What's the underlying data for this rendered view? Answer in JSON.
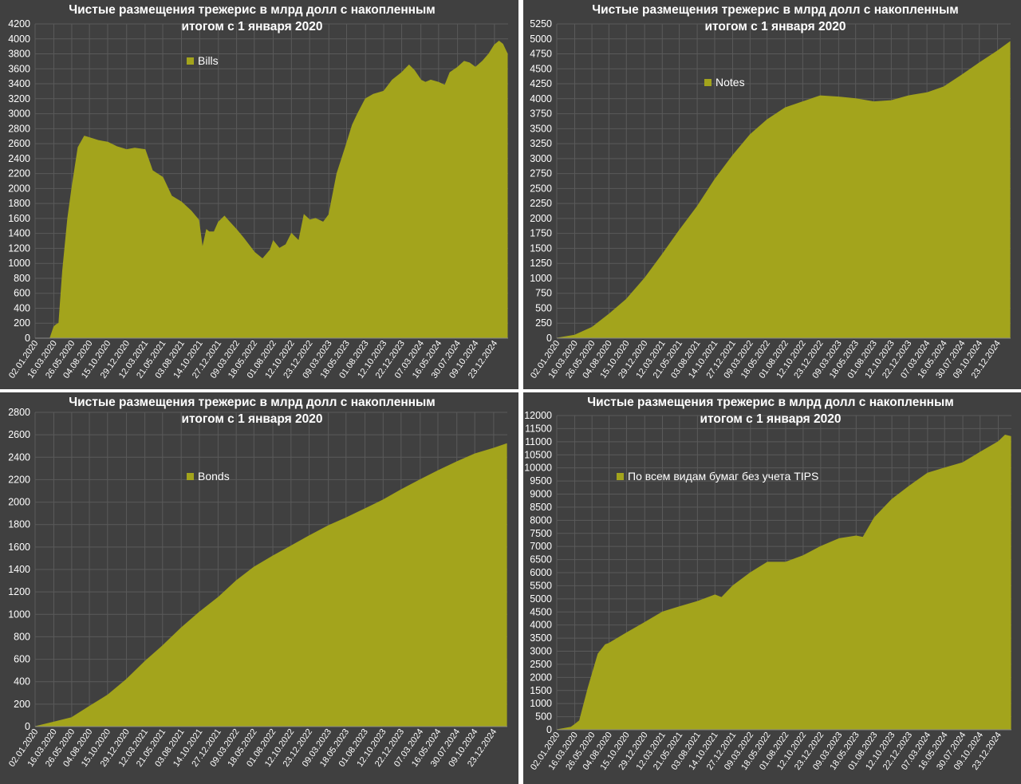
{
  "colors": {
    "background": "#404040",
    "series": "#a3a41c",
    "grid": "#5a5a5a",
    "text": "#ffffff"
  },
  "chart_data": [
    {
      "type": "area",
      "title": "Чистые размещения трежерис в млрд долл с накопленным итогом с 1 января 2020",
      "legend": "top-left",
      "grid": true,
      "ylim": [
        0,
        4200
      ],
      "yticks": [
        0,
        200,
        400,
        600,
        800,
        1000,
        1200,
        1400,
        1600,
        1800,
        2000,
        2200,
        2400,
        2600,
        2800,
        3000,
        3200,
        3400,
        3600,
        3800,
        4000,
        4200
      ],
      "xlim": [
        "2020-01-02",
        "2025-02-15"
      ],
      "xticks": [
        "02.01.2020",
        "16.03.2020",
        "26.05.2020",
        "04.08.2020",
        "15.10.2020",
        "29.12.2020",
        "12.03.2021",
        "21.05.2021",
        "03.08.2021",
        "14.10.2021",
        "27.12.2021",
        "09.03.2022",
        "18.05.2022",
        "01.08.2022",
        "12.10.2022",
        "23.12.2022",
        "09.03.2023",
        "18.05.2023",
        "01.08.2023",
        "12.10.2023",
        "22.12.2023",
        "07.03.2024",
        "16.05.2024",
        "30.07.2024",
        "09.10.2024",
        "23.12.2024"
      ],
      "series": [
        {
          "name": "Bills",
          "x": [
            "2020-01-02",
            "2020-02-15",
            "2020-03-01",
            "2020-03-16",
            "2020-03-25",
            "2020-04-05",
            "2020-04-20",
            "2020-05-10",
            "2020-05-26",
            "2020-06-20",
            "2020-07-15",
            "2020-08-04",
            "2020-09-10",
            "2020-10-15",
            "2020-11-20",
            "2020-12-29",
            "2021-01-30",
            "2021-03-12",
            "2021-04-10",
            "2021-05-21",
            "2021-06-25",
            "2021-08-03",
            "2021-09-10",
            "2021-10-10",
            "2021-10-25",
            "2021-11-10",
            "2021-11-20",
            "2021-12-10",
            "2021-12-27",
            "2022-01-20",
            "2022-02-10",
            "2022-03-09",
            "2022-04-05",
            "2022-05-18",
            "2022-06-20",
            "2022-07-20",
            "2022-08-01",
            "2022-08-25",
            "2022-09-20",
            "2022-10-12",
            "2022-11-10",
            "2022-12-01",
            "2022-12-23",
            "2023-01-15",
            "2023-02-15",
            "2023-03-09",
            "2023-04-10",
            "2023-05-18",
            "2023-06-10",
            "2023-07-01",
            "2023-08-01",
            "2023-09-01",
            "2023-10-12",
            "2023-11-15",
            "2023-12-22",
            "2024-01-20",
            "2024-02-10",
            "2024-03-07",
            "2024-03-25",
            "2024-04-15",
            "2024-05-16",
            "2024-06-10",
            "2024-06-30",
            "2024-07-30",
            "2024-08-25",
            "2024-09-15",
            "2024-10-09",
            "2024-11-05",
            "2024-12-01",
            "2024-12-23",
            "2025-01-10",
            "2025-01-25",
            "2025-02-05",
            "2025-02-12"
          ],
          "values": [
            0,
            0,
            0,
            150,
            180,
            200,
            900,
            1600,
            2000,
            2550,
            2700,
            2680,
            2640,
            2620,
            2560,
            2520,
            2540,
            2520,
            2240,
            2150,
            1900,
            1820,
            1700,
            1580,
            1200,
            1450,
            1420,
            1420,
            1550,
            1630,
            1550,
            1450,
            1340,
            1150,
            1060,
            1180,
            1300,
            1200,
            1250,
            1400,
            1300,
            1650,
            1580,
            1600,
            1550,
            1650,
            2200,
            2600,
            2850,
            3000,
            3200,
            3260,
            3300,
            3450,
            3550,
            3650,
            3580,
            3450,
            3420,
            3450,
            3420,
            3380,
            3550,
            3620,
            3700,
            3680,
            3620,
            3700,
            3800,
            3920,
            3970,
            3930,
            3850,
            3800
          ]
        }
      ]
    },
    {
      "type": "area",
      "title": "Чистые размещения трежерис в млрд долл с накопленным итогом с 1 января 2020",
      "legend": "top-left",
      "grid": true,
      "ylim": [
        0,
        5250
      ],
      "yticks": [
        0,
        250,
        500,
        750,
        1000,
        1250,
        1500,
        1750,
        2000,
        2250,
        2500,
        2750,
        3000,
        3250,
        3500,
        3750,
        4000,
        4250,
        4500,
        4750,
        5000,
        5250
      ],
      "xlim": [
        "2020-01-02",
        "2025-02-15"
      ],
      "xticks": [
        "02.01.2020",
        "16.03.2020",
        "26.05.2020",
        "04.08.2020",
        "15.10.2020",
        "29.12.2020",
        "12.03.2021",
        "21.05.2021",
        "03.08.2021",
        "14.10.2021",
        "27.12.2021",
        "09.03.2022",
        "18.05.2022",
        "01.08.2022",
        "12.10.2022",
        "23.12.2022",
        "09.03.2023",
        "18.05.2023",
        "01.08.2023",
        "12.10.2023",
        "22.12.2023",
        "07.03.2024",
        "16.05.2024",
        "30.07.2024",
        "09.10.2024",
        "23.12.2024"
      ],
      "series": [
        {
          "name": "Notes",
          "x": [
            "2020-01-02",
            "2020-03-16",
            "2020-05-26",
            "2020-08-04",
            "2020-10-15",
            "2020-12-29",
            "2021-03-12",
            "2021-05-21",
            "2021-08-03",
            "2021-10-14",
            "2021-12-27",
            "2022-03-09",
            "2022-05-18",
            "2022-08-01",
            "2022-10-12",
            "2022-12-23",
            "2023-03-09",
            "2023-05-18",
            "2023-08-01",
            "2023-10-12",
            "2023-12-22",
            "2024-03-07",
            "2024-05-16",
            "2024-07-30",
            "2024-10-09",
            "2024-12-23",
            "2025-02-12"
          ],
          "values": [
            0,
            50,
            180,
            400,
            650,
            1000,
            1400,
            1800,
            2200,
            2650,
            3050,
            3400,
            3650,
            3850,
            3950,
            4050,
            4030,
            4000,
            3950,
            3970,
            4050,
            4100,
            4200,
            4400,
            4600,
            4800,
            4950
          ]
        }
      ]
    },
    {
      "type": "area",
      "title": "Чистые размещения трежерис в млрд долл с накопленным итогом с 1 января 2020",
      "legend": "top-left",
      "grid": true,
      "ylim": [
        0,
        2800
      ],
      "yticks": [
        0,
        200,
        400,
        600,
        800,
        1000,
        1200,
        1400,
        1600,
        1800,
        2000,
        2200,
        2400,
        2600,
        2800
      ],
      "xlim": [
        "2020-01-02",
        "2025-02-15"
      ],
      "xticks": [
        "02.01.2020",
        "16.03.2020",
        "26.05.2020",
        "04.08.2020",
        "15.10.2020",
        "29.12.2020",
        "12.03.2021",
        "21.05.2021",
        "03.08.2021",
        "14.10.2021",
        "27.12.2021",
        "09.03.2022",
        "18.05.2022",
        "01.08.2022",
        "12.10.2022",
        "23.12.2022",
        "09.03.2023",
        "18.05.2023",
        "01.08.2023",
        "12.10.2023",
        "22.12.2023",
        "07.03.2024",
        "16.05.2024",
        "30.07.2024",
        "09.10.2024",
        "23.12.2024"
      ],
      "series": [
        {
          "name": "Bonds",
          "x": [
            "2020-01-02",
            "2020-03-16",
            "2020-05-26",
            "2020-08-04",
            "2020-10-15",
            "2020-12-29",
            "2021-03-12",
            "2021-05-21",
            "2021-08-03",
            "2021-10-14",
            "2021-12-27",
            "2022-03-09",
            "2022-05-18",
            "2022-08-01",
            "2022-10-12",
            "2022-12-23",
            "2023-03-09",
            "2023-05-18",
            "2023-08-01",
            "2023-10-12",
            "2023-12-22",
            "2024-03-07",
            "2024-05-16",
            "2024-07-30",
            "2024-10-09",
            "2024-12-23",
            "2025-02-12"
          ],
          "values": [
            0,
            40,
            80,
            180,
            280,
            420,
            580,
            720,
            880,
            1020,
            1150,
            1300,
            1420,
            1520,
            1610,
            1700,
            1790,
            1860,
            1940,
            2020,
            2110,
            2200,
            2280,
            2360,
            2430,
            2480,
            2520
          ]
        }
      ]
    },
    {
      "type": "area",
      "title": "Чистые размещения трежерис в млрд долл с накопленным итогом с 1 января 2020",
      "legend": "top-left",
      "grid": true,
      "ylim": [
        0,
        12000
      ],
      "yticks": [
        0,
        500,
        1000,
        1500,
        2000,
        2500,
        3000,
        3500,
        4000,
        4500,
        5000,
        5500,
        6000,
        6500,
        7000,
        7500,
        8000,
        8500,
        9000,
        9500,
        10000,
        10500,
        11000,
        11500,
        12000
      ],
      "xlim": [
        "2020-01-02",
        "2025-02-15"
      ],
      "xticks": [
        "02.01.2020",
        "16.03.2020",
        "26.05.2020",
        "04.08.2020",
        "15.10.2020",
        "29.12.2020",
        "12.03.2021",
        "21.05.2021",
        "03.08.2021",
        "14.10.2021",
        "27.12.2021",
        "09.03.2022",
        "18.05.2022",
        "01.08.2022",
        "12.10.2022",
        "23.12.2022",
        "09.03.2023",
        "18.05.2023",
        "01.08.2023",
        "12.10.2023",
        "22.12.2023",
        "07.03.2024",
        "16.05.2024",
        "30.07.2024",
        "09.10.2024",
        "23.12.2024"
      ],
      "series": [
        {
          "name": "По всем видам бумаг без учета TIPS",
          "x": [
            "2020-01-02",
            "2020-03-01",
            "2020-03-16",
            "2020-04-05",
            "2020-05-10",
            "2020-06-20",
            "2020-07-20",
            "2020-08-04",
            "2020-10-15",
            "2020-12-29",
            "2021-03-12",
            "2021-05-21",
            "2021-08-03",
            "2021-10-14",
            "2021-11-10",
            "2021-12-27",
            "2022-03-09",
            "2022-05-18",
            "2022-08-01",
            "2022-10-12",
            "2022-12-23",
            "2023-03-09",
            "2023-05-18",
            "2023-06-15",
            "2023-08-01",
            "2023-10-12",
            "2023-12-22",
            "2024-03-07",
            "2024-05-16",
            "2024-07-30",
            "2024-10-09",
            "2024-12-23",
            "2025-01-20",
            "2025-02-12"
          ],
          "values": [
            0,
            100,
            200,
            350,
            1600,
            2900,
            3250,
            3300,
            3700,
            4100,
            4500,
            4700,
            4900,
            5150,
            5050,
            5500,
            6000,
            6400,
            6400,
            6650,
            7000,
            7300,
            7400,
            7350,
            8100,
            8800,
            9300,
            9800,
            10000,
            10200,
            10600,
            11000,
            11250,
            11200
          ]
        }
      ]
    }
  ]
}
